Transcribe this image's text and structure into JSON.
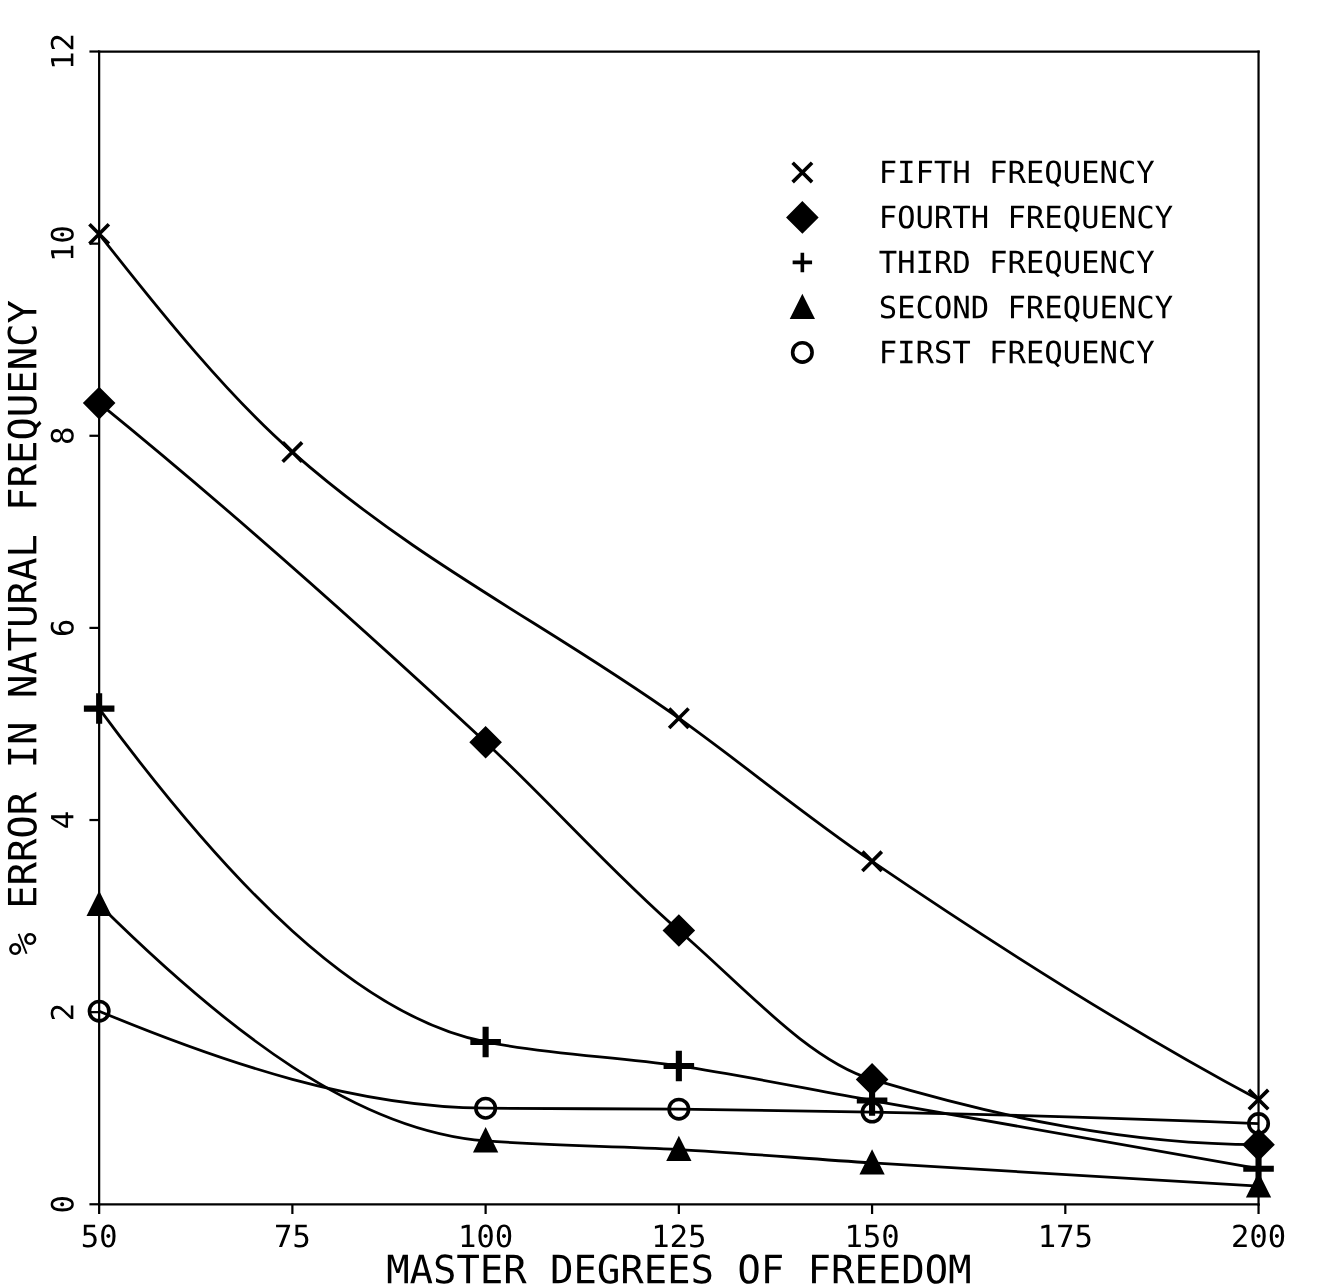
{
  "chart_data": {
    "type": "line",
    "xlabel": "MASTER DEGREES OF FREEDOM",
    "ylabel": "% ERROR IN NATURAL FREQUENCY",
    "x": [
      50,
      75,
      100,
      125,
      150,
      200
    ],
    "series": [
      {
        "name": "FIFTH FREQUENCY",
        "color": "#000000",
        "marker": "cross",
        "values": [
          10.1,
          7.83,
          null,
          5.06,
          3.57,
          1.09
        ]
      },
      {
        "name": "FOURTH FREQUENCY",
        "color": "#000000",
        "marker": "diamond",
        "values": [
          8.34,
          null,
          4.81,
          2.85,
          1.3,
          0.62
        ]
      },
      {
        "name": "THIRD FREQUENCY",
        "color": "#000000",
        "marker": "plus",
        "values": [
          5.16,
          null,
          1.69,
          1.44,
          1.08,
          0.37
        ]
      },
      {
        "name": "SECOND FREQUENCY",
        "color": "#000000",
        "marker": "triangle",
        "values": [
          3.12,
          null,
          0.66,
          0.57,
          0.43,
          0.19
        ]
      },
      {
        "name": "FIRST FREQUENCY",
        "color": "#000000",
        "marker": "circle",
        "values": [
          2.01,
          null,
          1.0,
          0.99,
          0.96,
          0.84
        ]
      }
    ],
    "xlim": [
      50,
      200
    ],
    "xticks": [
      50,
      75,
      100,
      125,
      150,
      175,
      200
    ],
    "ylim": [
      0,
      12
    ],
    "yticks": [
      0,
      2,
      4,
      6,
      8,
      10,
      12
    ],
    "grid": false,
    "legend": "top right",
    "line_style": "solid"
  }
}
